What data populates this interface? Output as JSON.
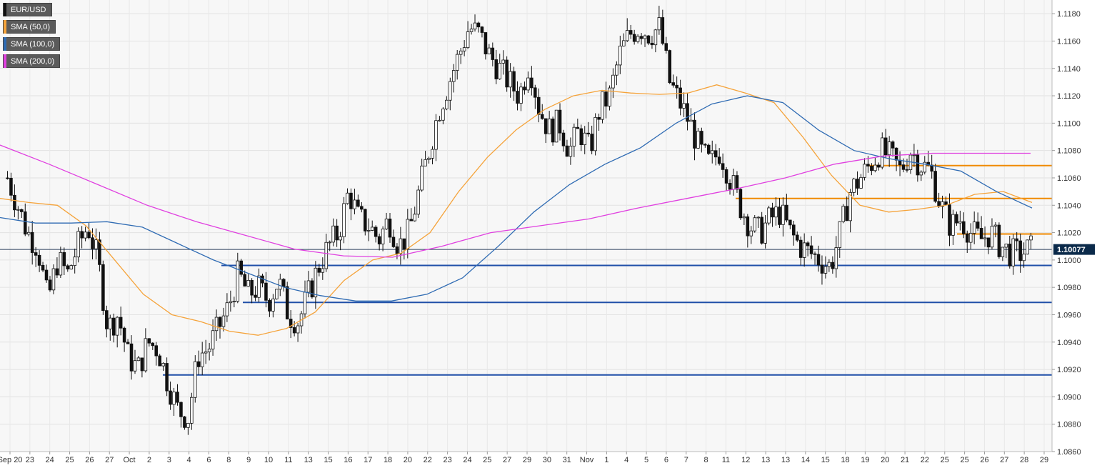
{
  "legend": [
    {
      "label": "EUR/USD",
      "color": "#111111"
    },
    {
      "label": "SMA (50,0)",
      "color": "#f5a33a"
    },
    {
      "label": "SMA (100,0)",
      "color": "#2f6bb3"
    },
    {
      "label": "SMA (200,0)",
      "color": "#e040e0"
    }
  ],
  "current_price": "1.10077",
  "chart_data": {
    "type": "candlestick",
    "title": "",
    "xlabel": "",
    "ylabel": "",
    "ylim": [
      1.086,
      1.119
    ],
    "y_ticks": [
      "1.0860",
      "1.0880",
      "1.0900",
      "1.0920",
      "1.0940",
      "1.0960",
      "1.0980",
      "1.1000",
      "1.1020",
      "1.1040",
      "1.1060",
      "1.1080",
      "1.1100",
      "1.1120",
      "1.1140",
      "1.1160",
      "1.1180"
    ],
    "x_tick_labels": [
      "Sep 20",
      "23",
      "24",
      "25",
      "26",
      "27",
      "Oct",
      "2",
      "3",
      "4",
      "6",
      "8",
      "9",
      "10",
      "11",
      "13",
      "15",
      "16",
      "17",
      "18",
      "20",
      "22",
      "23",
      "24",
      "25",
      "27",
      "29",
      "30",
      "31",
      "Nov",
      "1",
      "4",
      "5",
      "6",
      "7",
      "8",
      "11",
      "12",
      "13",
      "13",
      "14",
      "15",
      "18",
      "19",
      "20",
      "21",
      "22",
      "25",
      "25",
      "26",
      "27",
      "28",
      "29"
    ],
    "close_path": [
      1.106,
      1.104,
      1.102,
      1.101,
      1.097,
      1.1,
      1.099,
      1.101,
      1.1025,
      1.1,
      1.095,
      1.096,
      1.093,
      1.092,
      1.094,
      1.0935,
      1.091,
      1.089,
      1.0885,
      1.093,
      1.0935,
      1.095,
      1.0965,
      1.099,
      1.0975,
      1.098,
      1.097,
      1.0985,
      1.096,
      1.0955,
      1.0975,
      1.0995,
      1.101,
      1.102,
      1.105,
      1.103,
      1.1025,
      1.1015,
      1.103,
      1.101,
      1.102,
      1.105,
      1.108,
      1.111,
      1.113,
      1.115,
      1.117,
      1.1165,
      1.115,
      1.114,
      1.113,
      1.112,
      1.1145,
      1.111,
      1.1095,
      1.11,
      1.108,
      1.1095,
      1.108,
      1.111,
      1.112,
      1.115,
      1.1165,
      1.117,
      1.1165,
      1.117,
      1.113,
      1.1115,
      1.11,
      1.108,
      1.107,
      1.108,
      1.106,
      1.104,
      1.1025,
      1.102,
      1.103,
      1.1035,
      1.102,
      1.101,
      1.1005,
      1.1,
      1.0995,
      1.102,
      1.105,
      1.106,
      1.107,
      1.108,
      1.1075,
      1.1065,
      1.108,
      1.107,
      1.1065,
      1.104,
      1.1025,
      1.103,
      1.102,
      1.1015,
      1.102,
      1.101,
      1.1005,
      1.1005,
      1.1008
    ],
    "series": [
      {
        "name": "SMA (50,0)",
        "color": "#f5a33a",
        "values": [
          1.1045,
          1.1042,
          1.104,
          1.1025,
          1.1,
          1.0975,
          1.096,
          1.0955,
          1.0948,
          1.0945,
          1.095,
          1.0962,
          1.0985,
          1.1,
          1.1005,
          1.102,
          1.105,
          1.1075,
          1.1095,
          1.111,
          1.112,
          1.1124,
          1.1122,
          1.1121,
          1.1122,
          1.1128,
          1.1122,
          1.1115,
          1.109,
          1.1062,
          1.104,
          1.1035,
          1.1037,
          1.104,
          1.1048,
          1.105,
          1.1042
        ]
      },
      {
        "name": "SMA (100,0)",
        "color": "#2f6bb3",
        "values": [
          1.1031,
          1.1027,
          1.1027,
          1.1028,
          1.1024,
          1.1012,
          1.1,
          1.099,
          1.098,
          1.0974,
          1.097,
          1.097,
          1.0975,
          1.0987,
          1.101,
          1.1035,
          1.1055,
          1.107,
          1.1082,
          1.11,
          1.1114,
          1.112,
          1.1115,
          1.1095,
          1.108,
          1.1074,
          1.107,
          1.1065,
          1.105,
          1.1038
        ]
      },
      {
        "name": "SMA (200,0)",
        "color": "#e040e0",
        "values": [
          1.1084,
          1.107,
          1.1055,
          1.104,
          1.1028,
          1.1018,
          1.1008,
          1.1003,
          1.1002,
          1.101,
          1.102,
          1.1025,
          1.103,
          1.1038,
          1.1045,
          1.1052,
          1.106,
          1.107,
          1.1076,
          1.1078,
          1.1078,
          1.1078
        ]
      }
    ],
    "support_lines": [
      1.0996,
      1.0969,
      1.0916
    ],
    "resistance_lines": [
      1.1019,
      1.1045,
      1.1069
    ],
    "current_line": 1.10077,
    "grid": true
  }
}
